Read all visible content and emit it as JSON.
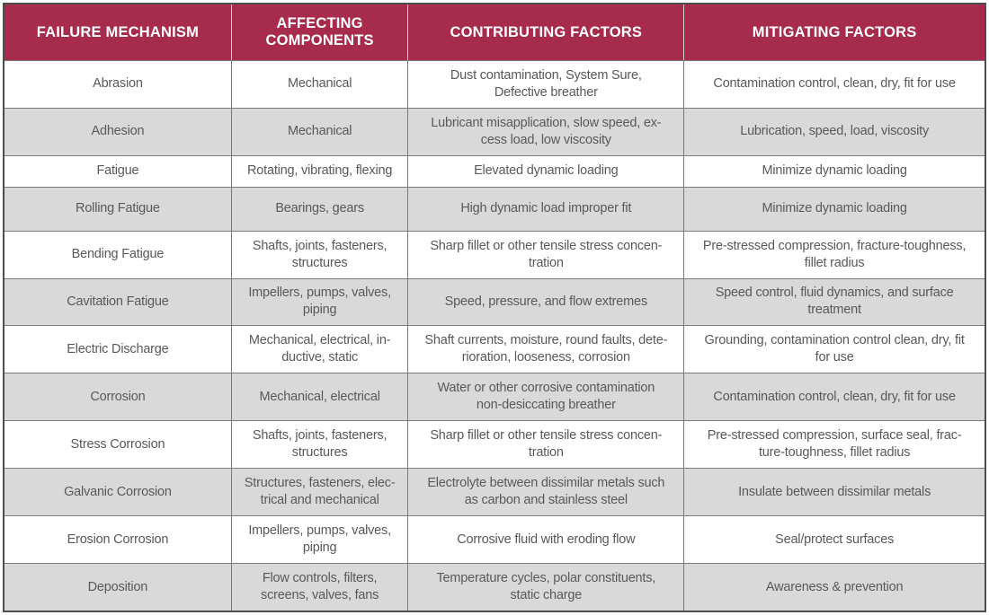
{
  "colors": {
    "header_background": "#A62B4D",
    "header_text": "#FFFFFF",
    "row_white": "#FFFFFF",
    "row_alt_gray": "#D9D9D9",
    "body_text": "#58595B",
    "grid_line": "#7A7A7A",
    "outer_border": "#4D4D4D"
  },
  "table": {
    "columns": {
      "failure_mechanism": "FAILURE MECHANISM",
      "affecting_components": "AFFECTING\nCOMPONENTS",
      "contributing_factors": "CONTRIBUTING FACTORS",
      "mitigating_factors": "MITIGATING FACTORS"
    },
    "rows": [
      {
        "mechanism": "Abrasion",
        "components": "Mechanical",
        "contributing": "Dust contamination, System Sure,\nDefective breather",
        "mitigating": "Contamination control, clean, dry, fit for use"
      },
      {
        "mechanism": "Adhesion",
        "components": "Mechanical",
        "contributing": "Lubricant misapplication, slow speed, ex-\ncess load, low viscosity",
        "mitigating": "Lubrication, speed, load, viscosity"
      },
      {
        "mechanism": "Fatigue",
        "components": "Rotating, vibrating, flexing",
        "contributing": "Elevated dynamic loading",
        "mitigating": "Minimize dynamic loading"
      },
      {
        "mechanism": "Rolling Fatigue",
        "components": "Bearings, gears",
        "contributing": "High dynamic load improper fit",
        "mitigating": "Minimize dynamic loading"
      },
      {
        "mechanism": "Bending Fatigue",
        "components": "Shafts, joints, fasteners,\nstructures",
        "contributing": "Sharp fillet or other tensile stress concen-\ntration",
        "mitigating": "Pre-stressed compression, fracture-toughness,\nfillet radius"
      },
      {
        "mechanism": "Cavitation Fatigue",
        "components": "Impellers, pumps, valves,\npiping",
        "contributing": "Speed, pressure, and flow extremes",
        "mitigating": "Speed control, fluid dynamics, and surface\ntreatment"
      },
      {
        "mechanism": "Electric Discharge",
        "components": "Mechanical, electrical, in-\nductive, static",
        "contributing": "Shaft currents, moisture, round faults, dete-\nrioration, looseness, corrosion",
        "mitigating": "Grounding, contamination control clean, dry, fit\nfor use"
      },
      {
        "mechanism": "Corrosion",
        "components": "Mechanical, electrical",
        "contributing": "Water or other corrosive contamination\nnon-desiccating breather",
        "mitigating": "Contamination control, clean, dry, fit for use"
      },
      {
        "mechanism": "Stress Corrosion",
        "components": "Shafts, joints, fasteners,\nstructures",
        "contributing": "Sharp fillet or other tensile stress concen-\ntration",
        "mitigating": "Pre-stressed compression, surface seal, frac-\nture-toughness, fillet radius"
      },
      {
        "mechanism": "Galvanic Corrosion",
        "components": "Structures, fasteners, elec-\ntrical and mechanical",
        "contributing": "Electrolyte between dissimilar metals such\nas carbon and stainless steel",
        "mitigating": "Insulate between dissimilar metals"
      },
      {
        "mechanism": "Erosion Corrosion",
        "components": "Impellers, pumps, valves,\npiping",
        "contributing": "Corrosive fluid with eroding flow",
        "mitigating": "Seal/protect surfaces"
      },
      {
        "mechanism": "Deposition",
        "components": "Flow controls, filters,\nscreens, valves, fans",
        "contributing": "Temperature cycles, polar constituents,\nstatic charge",
        "mitigating": "Awareness & prevention"
      }
    ]
  }
}
